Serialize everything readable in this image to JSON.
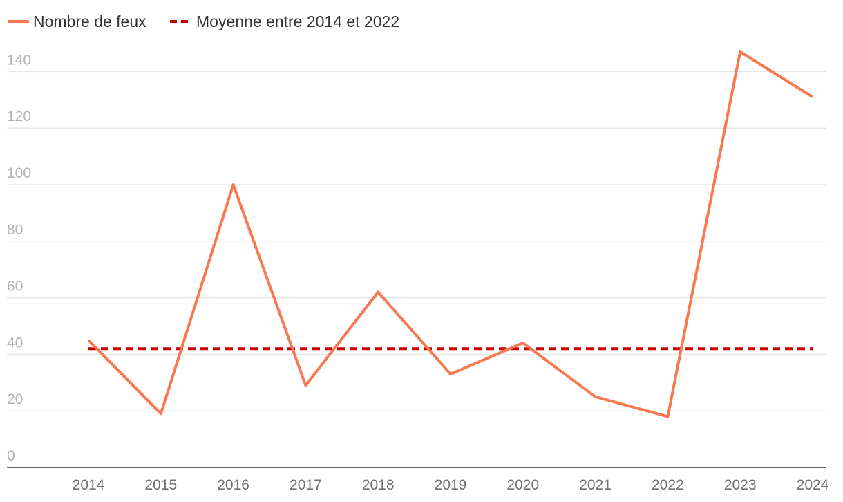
{
  "chart_data": {
    "type": "line",
    "title": "",
    "xlabel": "",
    "ylabel": "",
    "x": [
      "2014",
      "2015",
      "2016",
      "2017",
      "2018",
      "2019",
      "2020",
      "2021",
      "2022",
      "2023",
      "2024"
    ],
    "series": [
      {
        "name": "Nombre de feux",
        "color": "#f87850",
        "style": "solid",
        "values": [
          45,
          19,
          100,
          29,
          62,
          33,
          44,
          25,
          18,
          147,
          131
        ]
      },
      {
        "name": "Moyenne entre 2014 et 2022",
        "color": "#cc0000",
        "style": "dashed",
        "values": [
          42,
          42,
          42,
          42,
          42,
          42,
          42,
          42,
          42,
          42,
          42
        ]
      }
    ],
    "yticks": [
      "0",
      "20",
      "40",
      "60",
      "80",
      "100",
      "120",
      "140"
    ],
    "ylim": [
      0,
      140
    ],
    "grid": true,
    "legend_position": "top-left"
  }
}
